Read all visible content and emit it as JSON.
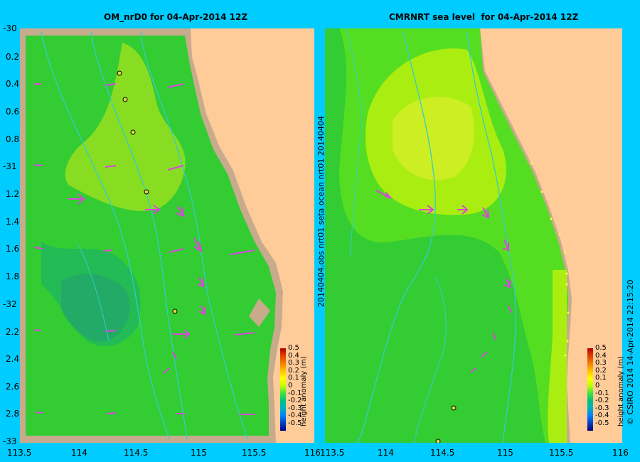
{
  "left_panel": {
    "title": "OM_nrD0 for 04-Apr-2014 12Z"
  },
  "right_panel": {
    "title": "CMRNRT sea level  for 04-Apr-2014 12Z",
    "side_label": "20140404.obs  nrt01  seta        ocean  nrt01  20140404"
  },
  "y_axis_labels": [
    "-30",
    "0.2",
    "0.4",
    "0.6",
    "0.8",
    "-31",
    "1.2",
    "1.4",
    "1.6",
    "1.8",
    "-32",
    "2.2",
    "2.4",
    "2.6",
    "2.8",
    "-33"
  ],
  "x_axis_labels_left": [
    "113.5",
    "114",
    "114.5",
    "115",
    "115.5",
    "116"
  ],
  "x_axis_labels_right": [
    "113.5",
    "114",
    "114.5",
    "115",
    "115.5",
    "116"
  ],
  "colorbar": {
    "ticks": [
      "0.5",
      "0.4",
      "0.3",
      "0.2",
      "0.1",
      "0",
      "-0.1",
      "-0.2",
      "-0.3",
      "-0.4",
      "-0.5"
    ],
    "label": "height anomaly (m)",
    "colors": [
      "#b00000",
      "#e04000",
      "#f08000",
      "#ffc000",
      "#ffff00",
      "#c0ff00",
      "#40e040",
      "#00c080",
      "#00b0c0",
      "#0080ff",
      "#0040c0",
      "#000080"
    ]
  },
  "credit": "© CSIRO 2014   14-Apr-2014 22:15:20",
  "colors": {
    "background": "#00ccff",
    "land": "#ffcc99",
    "coastal_strip": "#c8ab8c",
    "arrows": "#dd44dd",
    "isobath": "#33cccc"
  }
}
